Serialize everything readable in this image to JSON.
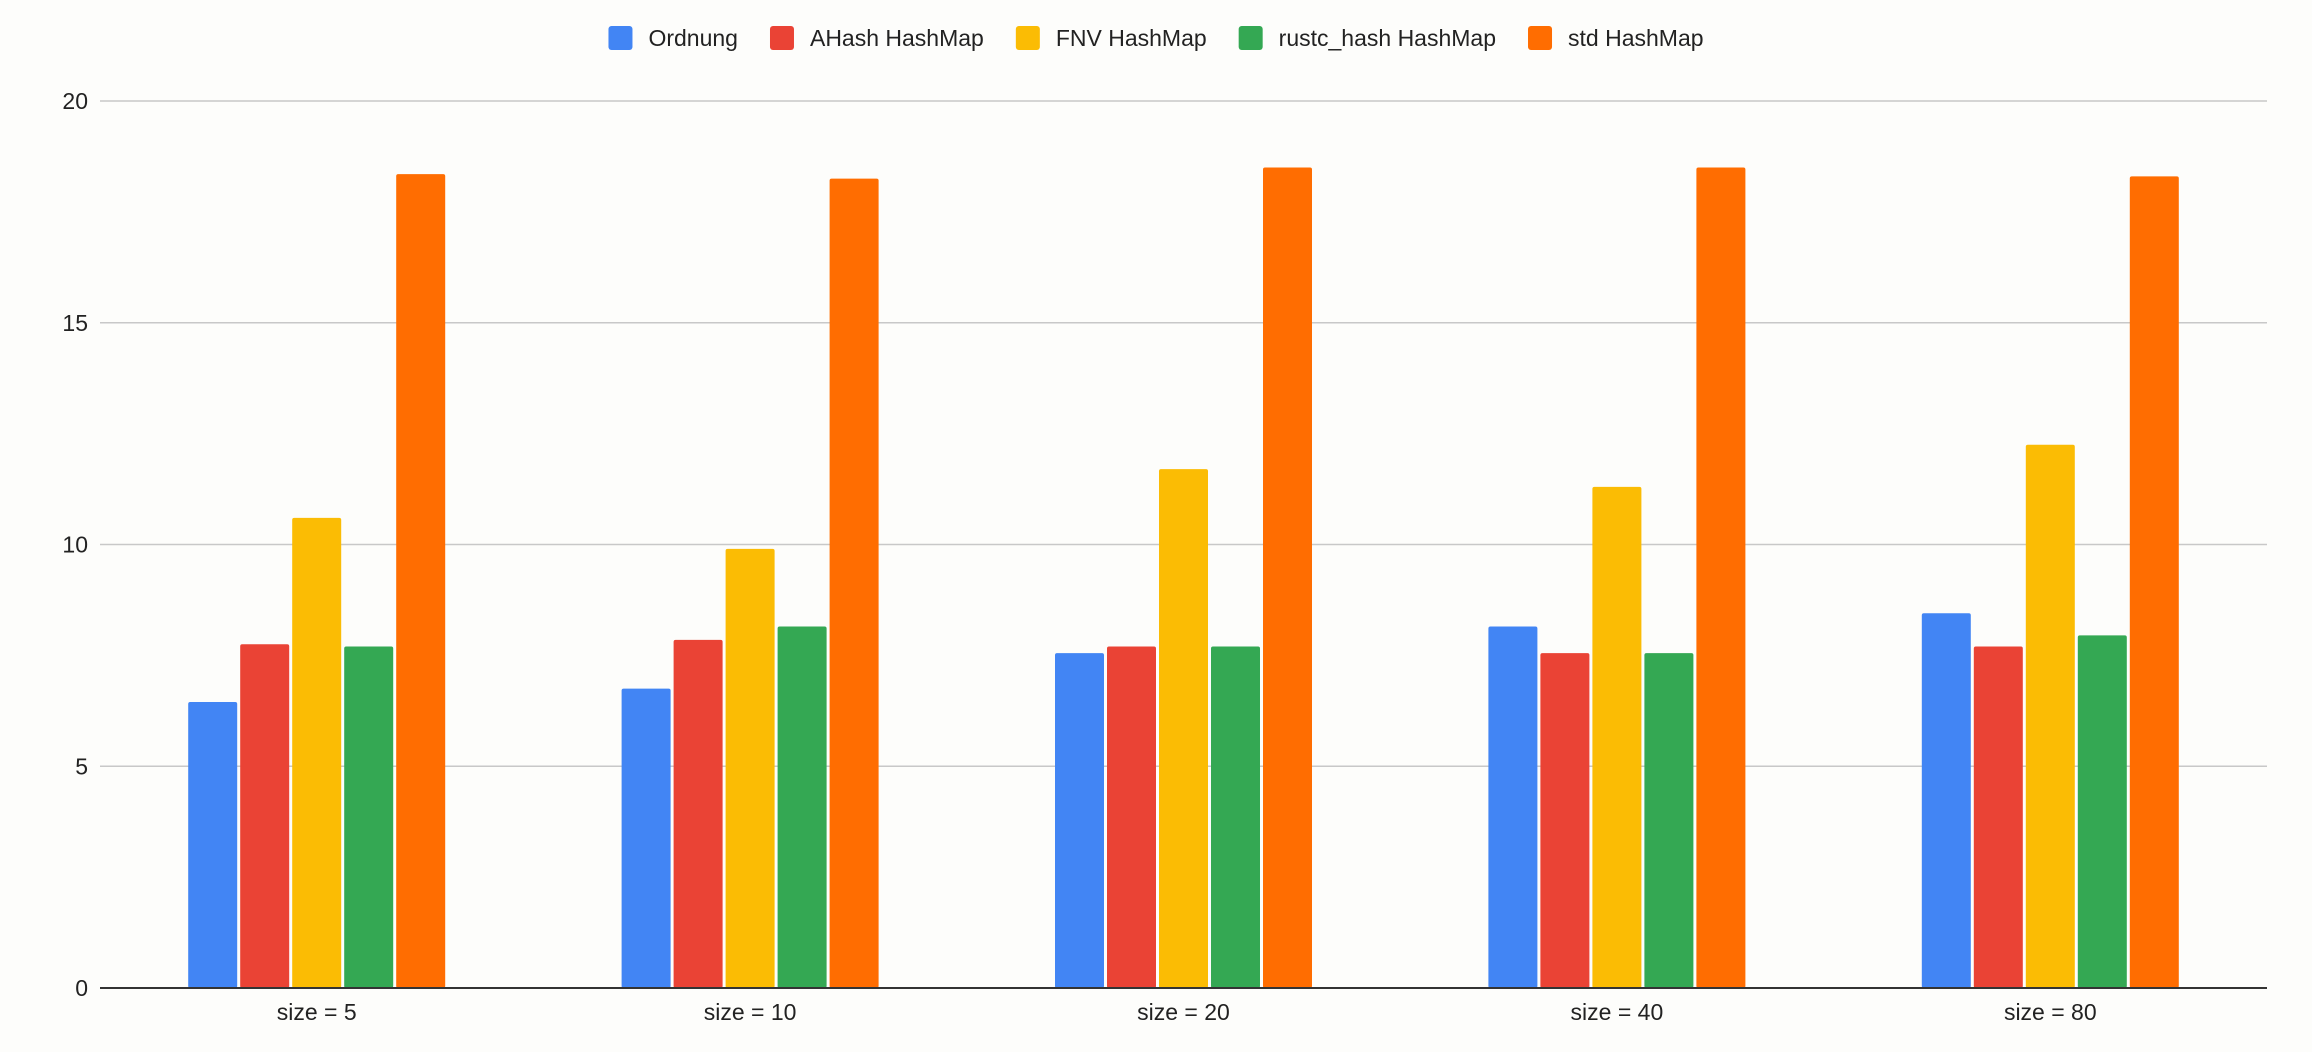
{
  "chart_data": {
    "type": "bar",
    "categories": [
      "size = 5",
      "size = 10",
      "size = 20",
      "size = 40",
      "size = 80"
    ],
    "series": [
      {
        "name": "Ordnung",
        "color": "#4285f4",
        "values": [
          6.45,
          6.75,
          7.55,
          8.15,
          8.45
        ]
      },
      {
        "name": "AHash HashMap",
        "color": "#ea4335",
        "values": [
          7.75,
          7.85,
          7.7,
          7.55,
          7.7
        ]
      },
      {
        "name": "FNV HashMap",
        "color": "#fbbc04",
        "values": [
          10.6,
          9.9,
          11.7,
          11.3,
          12.25
        ]
      },
      {
        "name": "rustc_hash HashMap",
        "color": "#34a853",
        "values": [
          7.7,
          8.15,
          7.7,
          7.55,
          7.95
        ]
      },
      {
        "name": "std HashMap",
        "color": "#ff6d01",
        "values": [
          18.35,
          18.25,
          18.5,
          18.5,
          18.3
        ]
      }
    ],
    "yticks": [
      "0",
      "5",
      "10",
      "15",
      "20"
    ],
    "ylim": [
      0,
      20
    ],
    "title": "",
    "xlabel": "",
    "ylabel": "",
    "grid": true,
    "legend_position": "top-center"
  }
}
